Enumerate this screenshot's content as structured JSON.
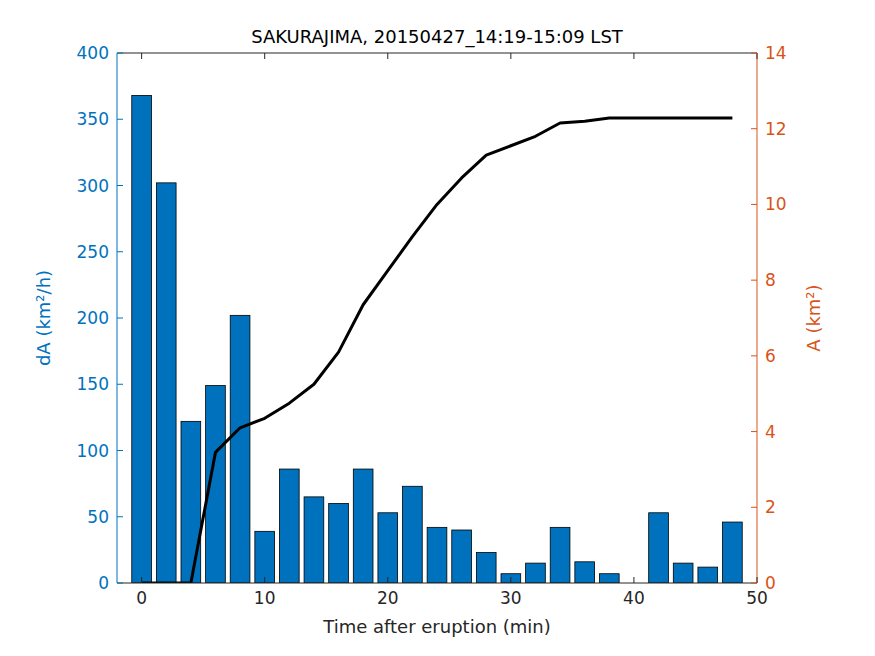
{
  "chart_data": {
    "type": "bar",
    "title": "SAKURAJIMA, 20150427_14:19-15:09 LST",
    "x_label": "Time after eruption (min)",
    "y_label": "dA (km²/h)",
    "y2_label": "A (km²)",
    "x": [
      0,
      2,
      4,
      6,
      8,
      10,
      12,
      14,
      16,
      18,
      20,
      22,
      24,
      26,
      28,
      30,
      32,
      34,
      36,
      38,
      40,
      42,
      44,
      46,
      48
    ],
    "series": [
      {
        "type": "bar",
        "color": "#0072bd",
        "axis": "y",
        "values": [
          368,
          302,
          122,
          149,
          202,
          39,
          86,
          65,
          60,
          86,
          53,
          73,
          42,
          40,
          23,
          7,
          15,
          42,
          16,
          7,
          0,
          53,
          15,
          12,
          46
        ]
      },
      {
        "type": "line",
        "color": "#000000",
        "axis": "y2",
        "values": [
          0,
          0,
          0,
          3.45,
          4.1,
          4.35,
          4.75,
          5.25,
          6.1,
          7.35,
          8.25,
          9.15,
          10.0,
          10.7,
          11.3,
          11.55,
          11.8,
          12.15,
          12.2,
          12.28,
          12.28,
          12.28,
          12.28,
          12.28,
          12.28
        ]
      }
    ],
    "xlim": [
      -2,
      50
    ],
    "xticks": [
      0,
      10,
      20,
      30,
      40,
      50
    ],
    "ylim": [
      0,
      400
    ],
    "yticks": [
      0,
      50,
      100,
      150,
      200,
      250,
      300,
      350,
      400
    ],
    "y2lim": [
      0,
      14
    ],
    "y2ticks": [
      0,
      2,
      4,
      6,
      8,
      10,
      12,
      14
    ],
    "grid": false
  }
}
